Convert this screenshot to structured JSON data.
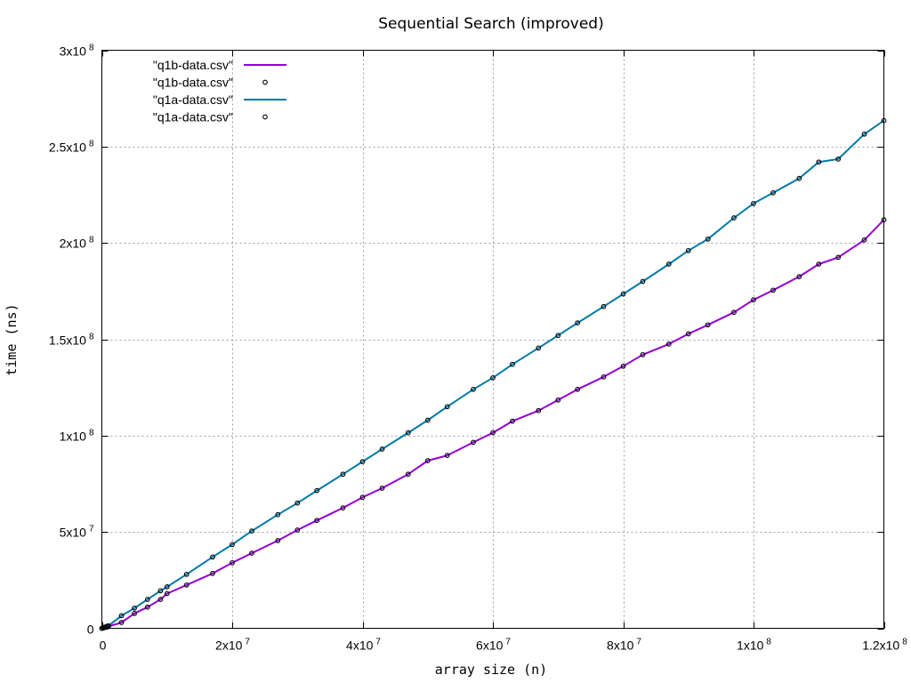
{
  "chart_data": {
    "type": "line",
    "title": "Sequential Search (improved)",
    "xlabel": "array size (n)",
    "ylabel": "time (ns)",
    "xlim": [
      0,
      120000000
    ],
    "ylim": [
      0,
      300000000
    ],
    "grid": true,
    "legend_position": "top-left",
    "x_ticks": [
      {
        "value": 0,
        "mantissa": "0",
        "exp": ""
      },
      {
        "value": 20000000,
        "mantissa": "2x10",
        "exp": "7"
      },
      {
        "value": 40000000,
        "mantissa": "4x10",
        "exp": "7"
      },
      {
        "value": 60000000,
        "mantissa": "6x10",
        "exp": "7"
      },
      {
        "value": 80000000,
        "mantissa": "8x10",
        "exp": "7"
      },
      {
        "value": 100000000,
        "mantissa": "1x10",
        "exp": "8"
      },
      {
        "value": 120000000,
        "mantissa": "1.2x10",
        "exp": "8"
      }
    ],
    "y_ticks": [
      {
        "value": 0,
        "mantissa": "0",
        "exp": ""
      },
      {
        "value": 50000000,
        "mantissa": "5x10",
        "exp": "7"
      },
      {
        "value": 100000000,
        "mantissa": "1x10",
        "exp": "8"
      },
      {
        "value": 150000000,
        "mantissa": "1.5x10",
        "exp": "8"
      },
      {
        "value": 200000000,
        "mantissa": "2x10",
        "exp": "8"
      },
      {
        "value": 250000000,
        "mantissa": "2.5x10",
        "exp": "8"
      },
      {
        "value": 300000000,
        "mantissa": "3x10",
        "exp": "8"
      }
    ],
    "legend": [
      {
        "label": "\"q1b-data.csv\"",
        "style": "line",
        "series": 0
      },
      {
        "label": "\"q1b-data.csv\"",
        "style": "points",
        "series": 0
      },
      {
        "label": "\"q1a-data.csv\"",
        "style": "line",
        "series": 1
      },
      {
        "label": "\"q1a-data.csv\"",
        "style": "points",
        "series": 1
      }
    ],
    "series": [
      {
        "name": "\"q1b-data.csv\"",
        "color": "#9400d3",
        "points": [
          [
            0,
            0
          ],
          [
            200000,
            200000
          ],
          [
            400000,
            400000
          ],
          [
            600000,
            500000
          ],
          [
            800000,
            700000
          ],
          [
            1000000,
            900000
          ],
          [
            3000000,
            3000000
          ],
          [
            5000000,
            7700000
          ],
          [
            7000000,
            11000000
          ],
          [
            9000000,
            15000000
          ],
          [
            10000000,
            18000000
          ],
          [
            13000000,
            22500000
          ],
          [
            17000000,
            28500000
          ],
          [
            20000000,
            34000000
          ],
          [
            23000000,
            39000000
          ],
          [
            27000000,
            45500000
          ],
          [
            30000000,
            51000000
          ],
          [
            33000000,
            56000000
          ],
          [
            37000000,
            62500000
          ],
          [
            40000000,
            68000000
          ],
          [
            43000000,
            72700000
          ],
          [
            47000000,
            80000000
          ],
          [
            50000000,
            87000000
          ],
          [
            53000000,
            89700000
          ],
          [
            57000000,
            96500000
          ],
          [
            60000000,
            101500000
          ],
          [
            63000000,
            107500000
          ],
          [
            67000000,
            113000000
          ],
          [
            70000000,
            118500000
          ],
          [
            73000000,
            124000000
          ],
          [
            77000000,
            130500000
          ],
          [
            80000000,
            136000000
          ],
          [
            83000000,
            142000000
          ],
          [
            87000000,
            147500000
          ],
          [
            90000000,
            152800000
          ],
          [
            93000000,
            157500000
          ],
          [
            97000000,
            164000000
          ],
          [
            100000000,
            170500000
          ],
          [
            103000000,
            175500000
          ],
          [
            107000000,
            182500000
          ],
          [
            110000000,
            189000000
          ],
          [
            113000000,
            192500000
          ],
          [
            117000000,
            201500000
          ],
          [
            120000000,
            212000000
          ]
        ]
      },
      {
        "name": "\"q1a-data.csv\"",
        "color": "#007ba6",
        "points": [
          [
            0,
            0
          ],
          [
            200000,
            300000
          ],
          [
            400000,
            600000
          ],
          [
            600000,
            800000
          ],
          [
            800000,
            1100000
          ],
          [
            1000000,
            1300000
          ],
          [
            3000000,
            6500000
          ],
          [
            5000000,
            10500000
          ],
          [
            7000000,
            15000000
          ],
          [
            9000000,
            19500000
          ],
          [
            10000000,
            21500000
          ],
          [
            13000000,
            28000000
          ],
          [
            17000000,
            37000000
          ],
          [
            20000000,
            43500000
          ],
          [
            23000000,
            50500000
          ],
          [
            27000000,
            59000000
          ],
          [
            30000000,
            65000000
          ],
          [
            33000000,
            71500000
          ],
          [
            37000000,
            80000000
          ],
          [
            40000000,
            86500000
          ],
          [
            43000000,
            93000000
          ],
          [
            47000000,
            101500000
          ],
          [
            50000000,
            108000000
          ],
          [
            53000000,
            115000000
          ],
          [
            57000000,
            124000000
          ],
          [
            60000000,
            130000000
          ],
          [
            63000000,
            137000000
          ],
          [
            67000000,
            145500000
          ],
          [
            70000000,
            152000000
          ],
          [
            73000000,
            158500000
          ],
          [
            77000000,
            167000000
          ],
          [
            80000000,
            173500000
          ],
          [
            83000000,
            180000000
          ],
          [
            87000000,
            189000000
          ],
          [
            90000000,
            196000000
          ],
          [
            93000000,
            202000000
          ],
          [
            97000000,
            213000000
          ],
          [
            100000000,
            220500000
          ],
          [
            103000000,
            226000000
          ],
          [
            107000000,
            233500000
          ],
          [
            110000000,
            242000000
          ],
          [
            113000000,
            243500000
          ],
          [
            117000000,
            256500000
          ],
          [
            120000000,
            263500000
          ]
        ]
      }
    ]
  }
}
